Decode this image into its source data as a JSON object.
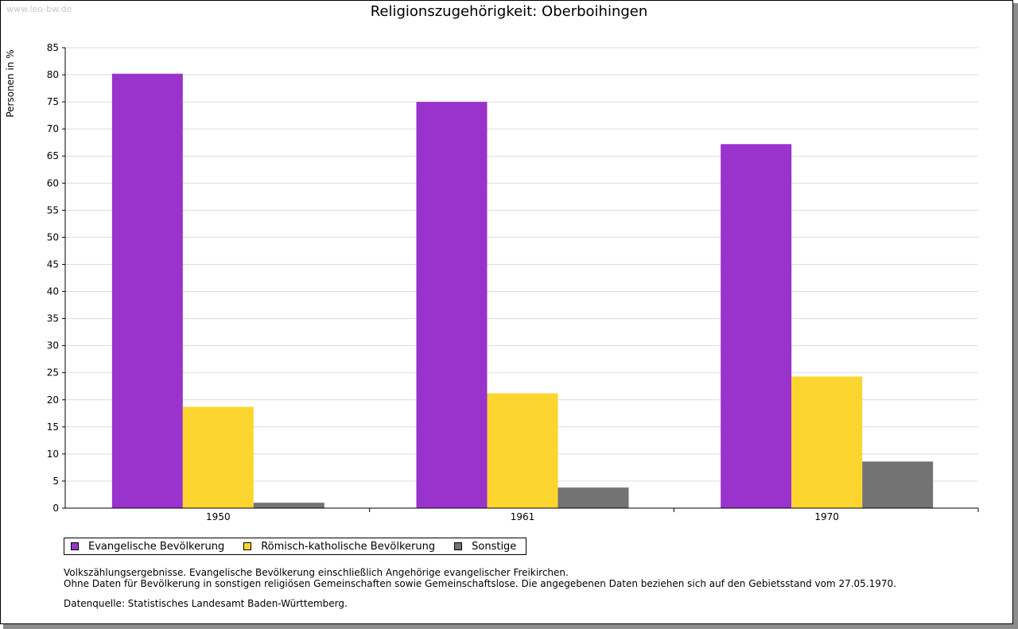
{
  "watermark": "www.leo-bw.de",
  "notes": {
    "line1": "Volkszählungsergebnisse. Evangelische Bevölkerung einschließlich Angehörige evangelischer Freikirchen.",
    "line2": "Ohne Daten für Bevölkerung in sonstigen religiösen Gemeinschaften sowie Gemeinschaftslose. Die angegebenen Daten beziehen sich auf den Gebietsstand vom 27.05.1970.",
    "source": "Datenquelle: Statistisches Landesamt Baden-Württemberg."
  },
  "chart_data": {
    "type": "bar",
    "title": "Religionszugehörigkeit: Oberboihingen",
    "xlabel": "",
    "ylabel": "Personen in %",
    "ylim": [
      0,
      85
    ],
    "yticks": [
      0,
      5,
      10,
      15,
      20,
      25,
      30,
      35,
      40,
      45,
      50,
      55,
      60,
      65,
      70,
      75,
      80,
      85
    ],
    "grid": true,
    "legend_position": "bottom-left",
    "categories": [
      "1950",
      "1961",
      "1970"
    ],
    "series": [
      {
        "name": "Evangelische Bevölkerung",
        "color": "#9933cc",
        "values": [
          80.2,
          75.0,
          67.2
        ]
      },
      {
        "name": "Römisch-katholische Bevölkerung",
        "color": "#fdd52f",
        "values": [
          18.7,
          21.2,
          24.3
        ]
      },
      {
        "name": "Sonstige",
        "color": "#737373",
        "values": [
          1.0,
          3.8,
          8.6
        ]
      }
    ]
  }
}
